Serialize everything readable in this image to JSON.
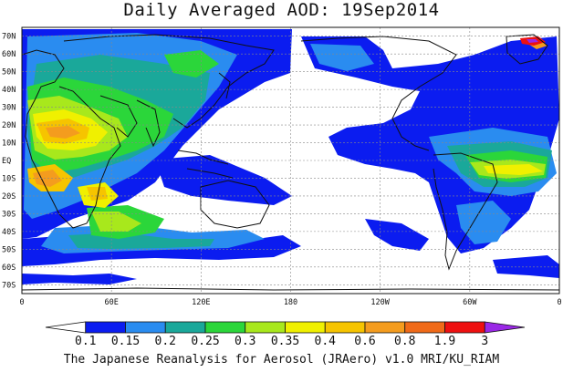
{
  "title": "Daily Averaged AOD: 19Sep2014",
  "credit": "The Japanese Reanalysis for Aerosol (JRAero) v1.0 MRI/KU_RIAM",
  "map": {
    "lat_labels": [
      "70N",
      "60N",
      "50N",
      "40N",
      "30N",
      "20N",
      "10N",
      "EQ",
      "10S",
      "20S",
      "30S",
      "40S",
      "50S",
      "60S",
      "70S"
    ],
    "lat_values": [
      70,
      60,
      50,
      40,
      30,
      20,
      10,
      0,
      -10,
      -20,
      -30,
      -40,
      -50,
      -60,
      -70
    ],
    "lon_labels": [
      "0",
      "60E",
      "120E",
      "180",
      "120W",
      "60W",
      "0"
    ],
    "lon_values": [
      0,
      60,
      120,
      180,
      240,
      300,
      360
    ],
    "lat_range": [
      -75,
      75
    ],
    "lon_range": [
      0,
      360
    ],
    "grid": true
  },
  "colorbar": {
    "labels": [
      "0.1",
      "0.15",
      "0.2",
      "0.25",
      "0.3",
      "0.35",
      "0.4",
      "0.6",
      "0.8",
      "1.9",
      "3"
    ],
    "colors": [
      "#ffffff",
      "#0b1cf0",
      "#2a8cf0",
      "#1aa89a",
      "#2bd63a",
      "#a8e81c",
      "#f0f000",
      "#f6c400",
      "#f49c1e",
      "#f06a18",
      "#ee1010",
      "#9a28e6"
    ]
  },
  "palette": {
    "c1": "#0b1cf0",
    "c2": "#2a8cf0",
    "c3": "#1aa89a",
    "c4": "#2bd63a",
    "c5": "#a8e81c",
    "c6": "#f0f000",
    "c7": "#f6c400",
    "c8": "#f49c1e",
    "c9": "#f06a18",
    "c10": "#ee1010",
    "c11": "#9a28e6"
  }
}
